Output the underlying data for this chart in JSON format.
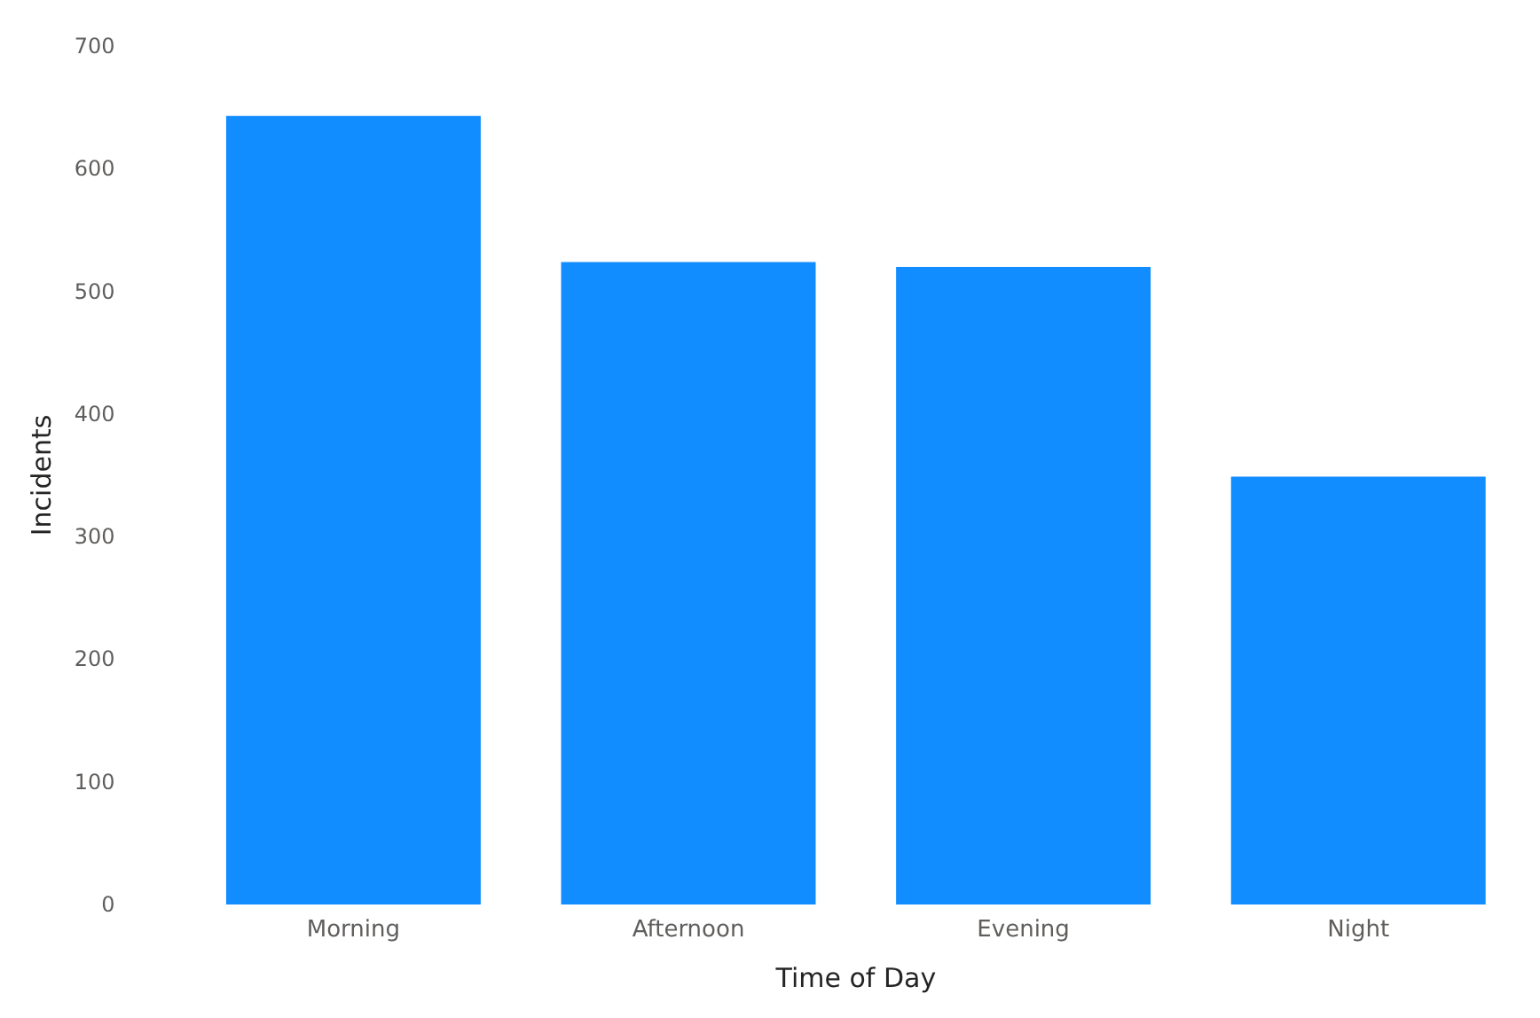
{
  "chart_data": {
    "type": "bar",
    "xlabel": "Time of Day",
    "ylabel": "Incidents",
    "categories": [
      "Morning",
      "Afternoon",
      "Evening",
      "Night"
    ],
    "values": [
      643,
      524,
      520,
      349
    ],
    "color": "#118dff",
    "ylim": [
      0,
      700
    ],
    "yticks": [
      0,
      100,
      200,
      300,
      400,
      500,
      600,
      700
    ],
    "grid": false
  }
}
